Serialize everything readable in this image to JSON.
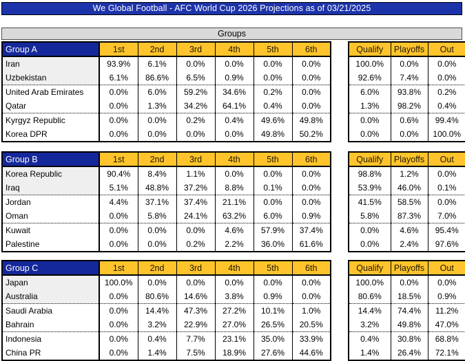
{
  "title": "We Global Football - AFC World Cup 2026 Projections as of 03/21/2025",
  "section_title": "Groups",
  "colors": {
    "title_blue": "#1C33A9",
    "group_header_blue": "#15289B",
    "accent_gold": "#FFC42C",
    "section_gray": "#D9D9D9",
    "qualify_zone_tint": "#EFEFEF"
  },
  "position_columns": [
    "1st",
    "2nd",
    "3rd",
    "4th",
    "5th",
    "6th"
  ],
  "outcome_columns": [
    "Qualify",
    "Playoffs",
    "Out"
  ],
  "chart_data": [
    {
      "type": "table",
      "group": "Group A",
      "columns": [
        "1st",
        "2nd",
        "3rd",
        "4th",
        "5th",
        "6th",
        "Qualify",
        "Playoffs",
        "Out"
      ],
      "rows": [
        {
          "team": "Iran",
          "positions": [
            "93.9%",
            "6.1%",
            "0.0%",
            "0.0%",
            "0.0%",
            "0.0%"
          ],
          "outcomes": [
            "100.0%",
            "0.0%",
            "0.0%"
          ]
        },
        {
          "team": "Uzbekistan",
          "positions": [
            "6.1%",
            "86.6%",
            "6.5%",
            "0.9%",
            "0.0%",
            "0.0%"
          ],
          "outcomes": [
            "92.6%",
            "7.4%",
            "0.0%"
          ]
        },
        {
          "team": "United Arab Emirates",
          "positions": [
            "0.0%",
            "6.0%",
            "59.2%",
            "34.6%",
            "0.2%",
            "0.0%"
          ],
          "outcomes": [
            "6.0%",
            "93.8%",
            "0.2%"
          ]
        },
        {
          "team": "Qatar",
          "positions": [
            "0.0%",
            "1.3%",
            "34.2%",
            "64.1%",
            "0.4%",
            "0.0%"
          ],
          "outcomes": [
            "1.3%",
            "98.2%",
            "0.4%"
          ]
        },
        {
          "team": "Kyrgyz Republic",
          "positions": [
            "0.0%",
            "0.0%",
            "0.2%",
            "0.4%",
            "49.6%",
            "49.8%"
          ],
          "outcomes": [
            "0.0%",
            "0.6%",
            "99.4%"
          ]
        },
        {
          "team": "Korea DPR",
          "positions": [
            "0.0%",
            "0.0%",
            "0.0%",
            "0.0%",
            "49.8%",
            "50.2%"
          ],
          "outcomes": [
            "0.0%",
            "0.0%",
            "100.0%"
          ]
        }
      ]
    },
    {
      "type": "table",
      "group": "Group B",
      "columns": [
        "1st",
        "2nd",
        "3rd",
        "4th",
        "5th",
        "6th",
        "Qualify",
        "Playoffs",
        "Out"
      ],
      "rows": [
        {
          "team": "Korea Republic",
          "positions": [
            "90.4%",
            "8.4%",
            "1.1%",
            "0.0%",
            "0.0%",
            "0.0%"
          ],
          "outcomes": [
            "98.8%",
            "1.2%",
            "0.0%"
          ]
        },
        {
          "team": "Iraq",
          "positions": [
            "5.1%",
            "48.8%",
            "37.2%",
            "8.8%",
            "0.1%",
            "0.0%"
          ],
          "outcomes": [
            "53.9%",
            "46.0%",
            "0.1%"
          ]
        },
        {
          "team": "Jordan",
          "positions": [
            "4.4%",
            "37.1%",
            "37.4%",
            "21.1%",
            "0.0%",
            "0.0%"
          ],
          "outcomes": [
            "41.5%",
            "58.5%",
            "0.0%"
          ]
        },
        {
          "team": "Oman",
          "positions": [
            "0.0%",
            "5.8%",
            "24.1%",
            "63.2%",
            "6.0%",
            "0.9%"
          ],
          "outcomes": [
            "5.8%",
            "87.3%",
            "7.0%"
          ]
        },
        {
          "team": "Kuwait",
          "positions": [
            "0.0%",
            "0.0%",
            "0.0%",
            "4.6%",
            "57.9%",
            "37.4%"
          ],
          "outcomes": [
            "0.0%",
            "4.6%",
            "95.4%"
          ]
        },
        {
          "team": "Palestine",
          "positions": [
            "0.0%",
            "0.0%",
            "0.2%",
            "2.2%",
            "36.0%",
            "61.6%"
          ],
          "outcomes": [
            "0.0%",
            "2.4%",
            "97.6%"
          ]
        }
      ]
    },
    {
      "type": "table",
      "group": "Group C",
      "columns": [
        "1st",
        "2nd",
        "3rd",
        "4th",
        "5th",
        "6th",
        "Qualify",
        "Playoffs",
        "Out"
      ],
      "rows": [
        {
          "team": "Japan",
          "positions": [
            "100.0%",
            "0.0%",
            "0.0%",
            "0.0%",
            "0.0%",
            "0.0%"
          ],
          "outcomes": [
            "100.0%",
            "0.0%",
            "0.0%"
          ]
        },
        {
          "team": "Australia",
          "positions": [
            "0.0%",
            "80.6%",
            "14.6%",
            "3.8%",
            "0.9%",
            "0.0%"
          ],
          "outcomes": [
            "80.6%",
            "18.5%",
            "0.9%"
          ]
        },
        {
          "team": "Saudi Arabia",
          "positions": [
            "0.0%",
            "14.4%",
            "47.3%",
            "27.2%",
            "10.1%",
            "1.0%"
          ],
          "outcomes": [
            "14.4%",
            "74.4%",
            "11.2%"
          ]
        },
        {
          "team": "Bahrain",
          "positions": [
            "0.0%",
            "3.2%",
            "22.9%",
            "27.0%",
            "26.5%",
            "20.5%"
          ],
          "outcomes": [
            "3.2%",
            "49.8%",
            "47.0%"
          ]
        },
        {
          "team": "Indonesia",
          "positions": [
            "0.0%",
            "0.4%",
            "7.7%",
            "23.1%",
            "35.0%",
            "33.9%"
          ],
          "outcomes": [
            "0.4%",
            "30.8%",
            "68.8%"
          ]
        },
        {
          "team": "China PR",
          "positions": [
            "0.0%",
            "1.4%",
            "7.5%",
            "18.9%",
            "27.6%",
            "44.6%"
          ],
          "outcomes": [
            "1.4%",
            "26.4%",
            "72.1%"
          ]
        }
      ]
    }
  ]
}
